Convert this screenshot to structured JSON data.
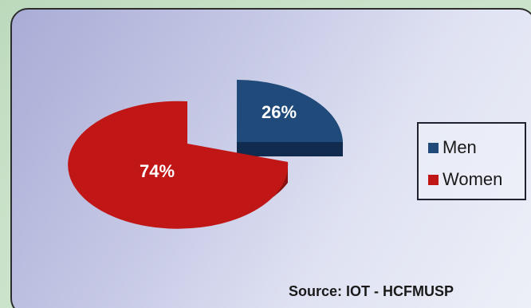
{
  "chart_data": {
    "type": "pie",
    "categories": [
      "Men",
      "Women"
    ],
    "values": [
      26,
      74
    ],
    "data_labels": [
      "26%",
      "74%"
    ],
    "colors": [
      "#1f4a7a",
      "#c01616"
    ],
    "style": "3d-exploded",
    "legend": {
      "placement": "right",
      "entries": [
        "Men",
        "Women"
      ]
    },
    "title": "",
    "annotation": "Source:  IOT - HCFMUSP"
  }
}
